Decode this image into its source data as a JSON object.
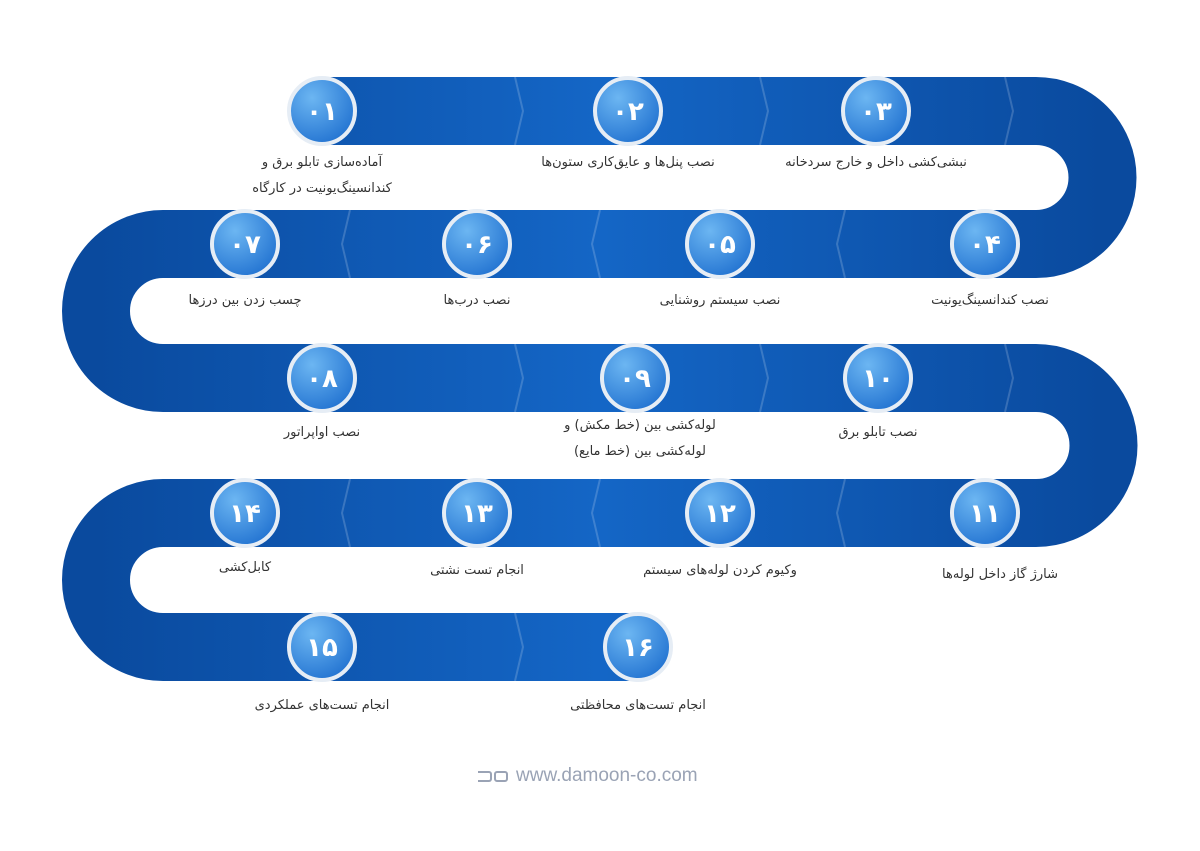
{
  "colors": {
    "band": "#1160bf",
    "band_dark": "#0a3f8c",
    "circle": "#3d8fe0",
    "circle_border": "#e6edf5",
    "text": "#333333",
    "footer": "#9aa3b5"
  },
  "steps": [
    {
      "num": "۰۱",
      "label": "آماده‌سازی تابلو برق و\nکندانسینگ‌یونیت در کارگاه"
    },
    {
      "num": "۰۲",
      "label": "نصب پنل‌ها و عایق‌کاری ستون‌ها"
    },
    {
      "num": "۰۳",
      "label": "نبشی‌کشی داخل و خارج سردخانه"
    },
    {
      "num": "۰۴",
      "label": "نصب کندانسینگ‌یونیت"
    },
    {
      "num": "۰۵",
      "label": "نصب سیستم روشنایی"
    },
    {
      "num": "۰۶",
      "label": "نصب درب‌ها"
    },
    {
      "num": "۰۷",
      "label": "چسب زدن بین درزها"
    },
    {
      "num": "۰۸",
      "label": "نصب اواپراتور"
    },
    {
      "num": "۰۹",
      "label": "لوله‌کشی بین (خط مکش) و\nلوله‌کشی بین (خط مایع)"
    },
    {
      "num": "۱۰",
      "label": "نصب تابلو برق"
    },
    {
      "num": "۱۱",
      "label": "شارژ گاز داخل لوله‌ها"
    },
    {
      "num": "۱۲",
      "label": "وکیوم کردن لوله‌های سیستم"
    },
    {
      "num": "۱۳",
      "label": "انجام تست نشتی"
    },
    {
      "num": "۱۴",
      "label": "کابل‌کشی"
    },
    {
      "num": "۱۵",
      "label": "انجام تست‌های عملکردی"
    },
    {
      "num": "۱۶",
      "label": "انجام تست‌های محافظتی"
    }
  ],
  "footer": {
    "logo": "da",
    "url": "www.damoon-co.com"
  }
}
